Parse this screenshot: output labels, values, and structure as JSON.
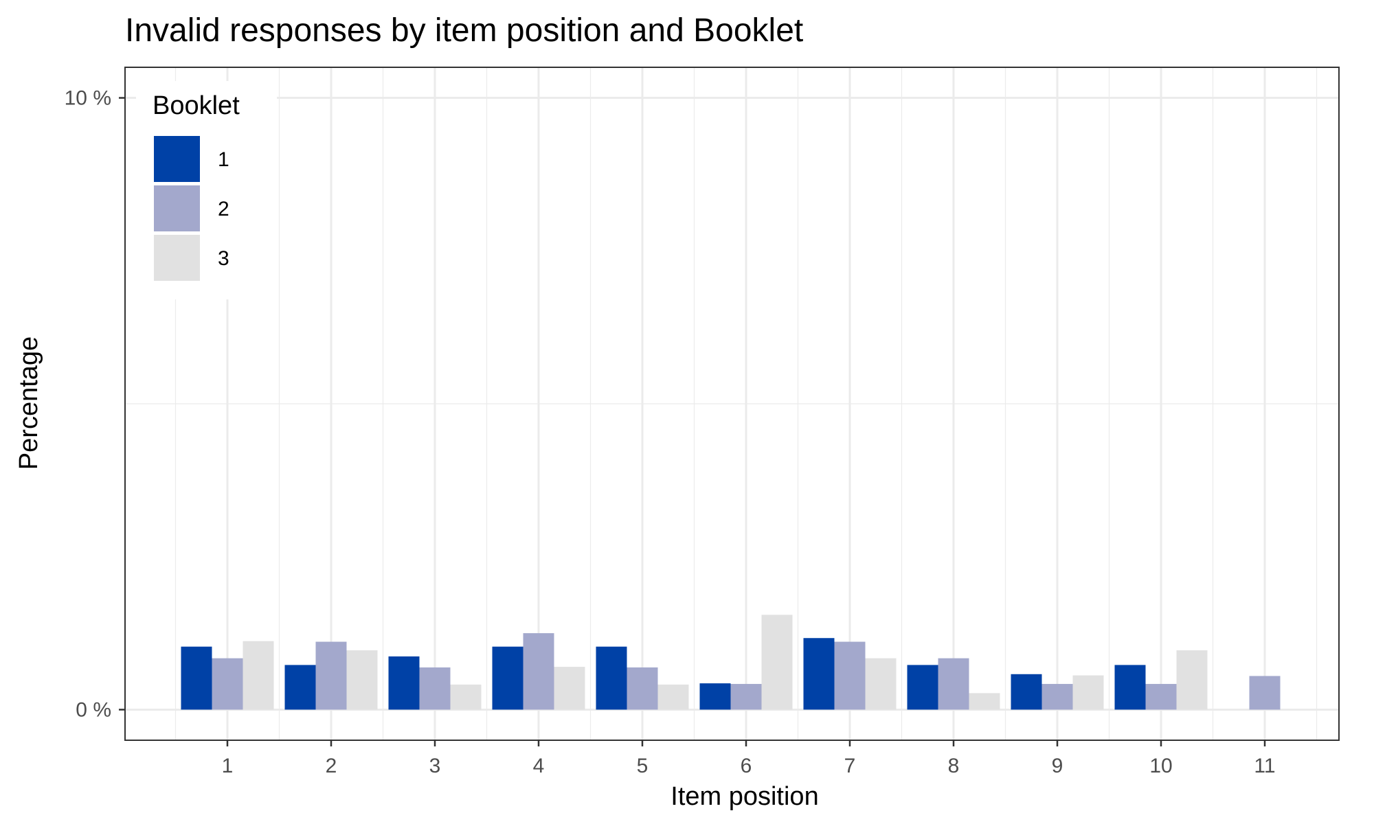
{
  "chart_data": {
    "type": "bar",
    "title": "Invalid responses by item position and Booklet",
    "xlabel": "Item position",
    "ylabel": "Percentage",
    "categories": [
      "1",
      "2",
      "3",
      "4",
      "5",
      "6",
      "7",
      "8",
      "9",
      "10",
      "11"
    ],
    "series": [
      {
        "name": "1",
        "color": "#0041A6",
        "values": [
          1.03,
          0.73,
          0.87,
          1.03,
          1.03,
          0.43,
          1.17,
          0.73,
          0.58,
          0.73,
          null
        ]
      },
      {
        "name": "2",
        "color": "#A3A8CC",
        "values": [
          0.84,
          1.11,
          0.69,
          1.25,
          0.69,
          0.42,
          1.11,
          0.84,
          0.42,
          0.42,
          0.55
        ]
      },
      {
        "name": "3",
        "color": "#E1E1E1",
        "values": [
          1.12,
          0.97,
          0.41,
          0.7,
          0.41,
          1.55,
          0.84,
          0.27,
          0.56,
          0.97,
          null
        ]
      }
    ],
    "y_ticks": [
      {
        "value": 0,
        "label": "0 %"
      },
      {
        "value": 10,
        "label": "10 %"
      }
    ],
    "ylim": [
      -0.5,
      10.5
    ],
    "grid": true,
    "legend": {
      "title": "Booklet",
      "position": "top-left-inside"
    }
  }
}
